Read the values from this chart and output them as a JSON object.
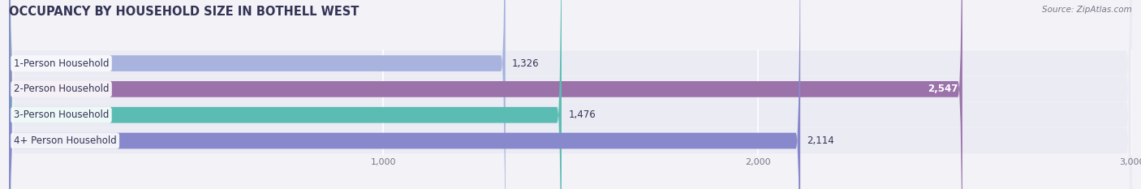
{
  "title": "OCCUPANCY BY HOUSEHOLD SIZE IN BOTHELL WEST",
  "source": "Source: ZipAtlas.com",
  "categories": [
    "1-Person Household",
    "2-Person Household",
    "3-Person Household",
    "4+ Person Household"
  ],
  "values": [
    1326,
    2547,
    1476,
    2114
  ],
  "bar_colors": [
    "#a8b4de",
    "#9b72aa",
    "#5bbcb4",
    "#8888cc"
  ],
  "label_colors": [
    "#444466",
    "#ffffff",
    "#444466",
    "#444466"
  ],
  "value_inside": [
    false,
    true,
    false,
    false
  ],
  "xlim": [
    0,
    3000
  ],
  "xticks": [
    1000,
    2000,
    3000
  ],
  "xtick_labels": [
    "1,000",
    "2,000",
    "3,000"
  ],
  "bg_color": "#f2f2f7",
  "bar_bg_color": "#e4e4ee",
  "bar_row_bg": "#ebebf4",
  "title_fontsize": 10.5,
  "label_fontsize": 8.5,
  "value_fontsize": 8.5,
  "bar_height": 0.62,
  "title_color": "#333355",
  "source_color": "#777788"
}
